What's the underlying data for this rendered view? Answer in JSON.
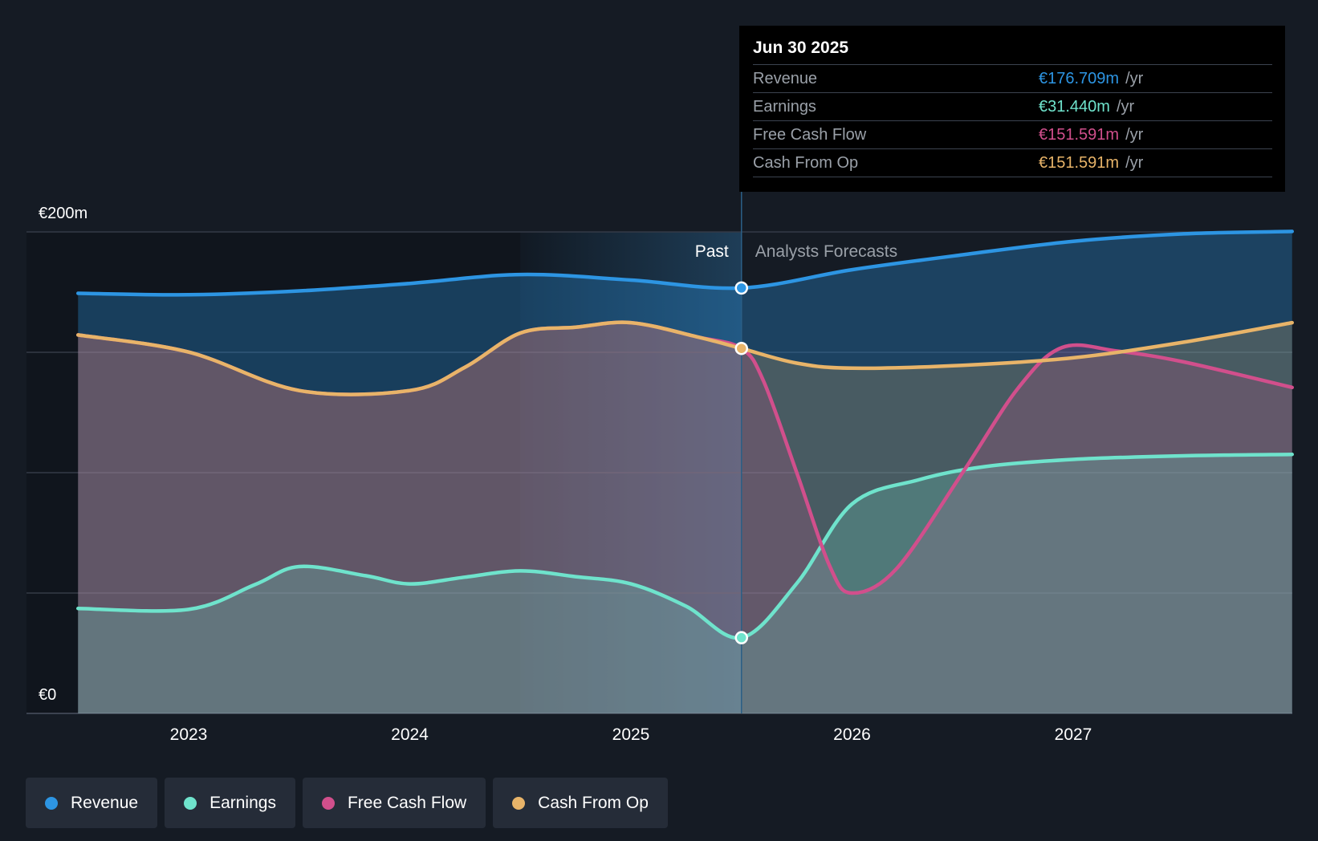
{
  "chart_data": {
    "type": "area",
    "y_axis": {
      "min": 0,
      "max": 200,
      "top_label": "€200m",
      "bottom_label": "€0",
      "gridlines": [
        0,
        50,
        100,
        150,
        200
      ]
    },
    "x_axis": {
      "ticks": [
        2023,
        2024,
        2025,
        2026,
        2027
      ],
      "labels": [
        "2023",
        "2024",
        "2025",
        "2026",
        "2027"
      ],
      "range": [
        2022.5,
        2027.99
      ]
    },
    "divider_x": 2025.5,
    "forecast_band_start": 2024.5,
    "past_label": "Past",
    "forecast_label": "Analysts Forecasts",
    "series": [
      {
        "name": "Revenue",
        "color": "#2d95e3",
        "x": [
          2022.5,
          2023.0,
          2023.5,
          2024.0,
          2024.5,
          2025.0,
          2025.5,
          2026.0,
          2026.5,
          2027.0,
          2027.5,
          2027.99
        ],
        "values": [
          174.5,
          173.9,
          175.5,
          178.6,
          182.3,
          180.0,
          176.709,
          184.3,
          190.5,
          196.1,
          199.2,
          200.2
        ]
      },
      {
        "name": "Earnings",
        "color": "#6fe3cc",
        "x": [
          2022.5,
          2023.0,
          2023.3,
          2023.5,
          2023.8,
          2024.0,
          2024.25,
          2024.5,
          2024.75,
          2025.0,
          2025.25,
          2025.5,
          2025.75,
          2026.0,
          2026.3,
          2026.6,
          2027.0,
          2027.5,
          2027.99
        ],
        "values": [
          43.6,
          43.2,
          53.5,
          61.0,
          57.2,
          53.8,
          56.6,
          59.2,
          56.8,
          53.8,
          44.5,
          31.44,
          54.0,
          87.0,
          97.0,
          102.5,
          105.5,
          107.0,
          107.6
        ]
      },
      {
        "name": "Free Cash Flow",
        "color": "#d14f8c",
        "x": [
          2022.5,
          2023.0,
          2023.5,
          2024.0,
          2024.25,
          2024.5,
          2024.75,
          2025.0,
          2025.3,
          2025.5,
          2025.6,
          2025.75,
          2025.9,
          2026.0,
          2026.2,
          2026.5,
          2026.75,
          2026.95,
          2027.2,
          2027.5,
          2027.99
        ],
        "values": [
          157.2,
          150.1,
          134.1,
          134.1,
          143.8,
          158.0,
          160.4,
          162.3,
          156.4,
          151.591,
          138.0,
          100.0,
          61.0,
          50.0,
          60.0,
          100.0,
          135.0,
          152.0,
          150.5,
          146.0,
          135.4
        ]
      },
      {
        "name": "Cash From Op",
        "color": "#e8b469",
        "x": [
          2022.5,
          2023.0,
          2023.5,
          2024.0,
          2024.25,
          2024.5,
          2024.75,
          2025.0,
          2025.3,
          2025.5,
          2025.75,
          2026.0,
          2026.5,
          2027.0,
          2027.5,
          2027.99
        ],
        "values": [
          157.2,
          150.1,
          134.1,
          134.1,
          143.8,
          158.0,
          160.4,
          162.3,
          156.4,
          151.591,
          145.5,
          143.4,
          144.6,
          147.7,
          154.2,
          162.3
        ]
      }
    ],
    "highlight": {
      "x": 2025.5,
      "points": {
        "Revenue": 176.709,
        "Earnings": 31.44,
        "Cash From Op": 151.591
      }
    }
  },
  "tooltip": {
    "date": "Jun 30 2025",
    "rows": [
      {
        "label": "Revenue",
        "value": "€176.709m",
        "unit": "/yr",
        "color": "#2d95e3"
      },
      {
        "label": "Earnings",
        "value": "€31.440m",
        "unit": "/yr",
        "color": "#6fe3cc"
      },
      {
        "label": "Free Cash Flow",
        "value": "€151.591m",
        "unit": "/yr",
        "color": "#d14f8c"
      },
      {
        "label": "Cash From Op",
        "value": "€151.591m",
        "unit": "/yr",
        "color": "#e8b469"
      }
    ]
  },
  "legend": [
    {
      "label": "Revenue",
      "color": "#2d95e3"
    },
    {
      "label": "Earnings",
      "color": "#6fe3cc"
    },
    {
      "label": "Free Cash Flow",
      "color": "#d14f8c"
    },
    {
      "label": "Cash From Op",
      "color": "#e8b469"
    }
  ]
}
